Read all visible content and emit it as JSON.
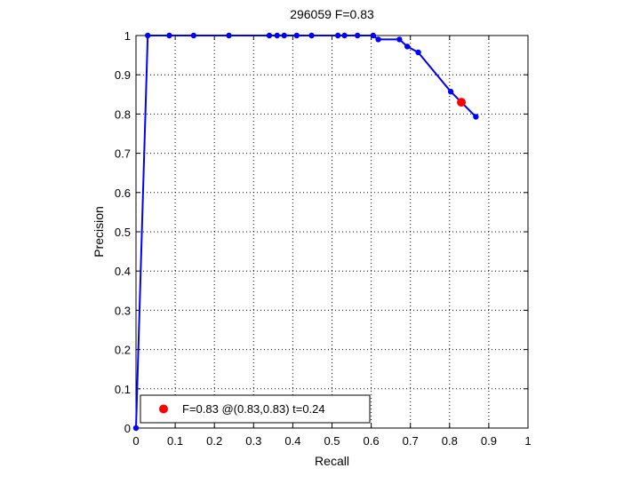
{
  "chart_data": {
    "type": "line",
    "title": "296059 F=0.83",
    "xlabel": "Recall",
    "ylabel": "Precision",
    "xlim": [
      0,
      1
    ],
    "ylim": [
      0,
      1
    ],
    "grid": true,
    "x_ticks": [
      "0",
      "0.1",
      "0.2",
      "0.3",
      "0.4",
      "0.5",
      "0.6",
      "0.7",
      "0.8",
      "0.9",
      "1"
    ],
    "y_ticks": [
      "0",
      "0.1",
      "0.2",
      "0.3",
      "0.4",
      "0.5",
      "0.6",
      "0.7",
      "0.8",
      "0.9",
      "1"
    ],
    "series": [
      {
        "color": "#0000ff",
        "x": [
          0,
          0.03,
          0.085,
          0.147,
          0.237,
          0.34,
          0.36,
          0.378,
          0.41,
          0.448,
          0.515,
          0.532,
          0.565,
          0.605,
          0.618,
          0.672,
          0.692,
          0.72,
          0.803,
          0.867
        ],
        "y": [
          0,
          1,
          1,
          1,
          1,
          1,
          1,
          1,
          1,
          1,
          1,
          1,
          1,
          1,
          0.99,
          0.99,
          0.972,
          0.957,
          0.857,
          0.793
        ]
      }
    ],
    "highlight": {
      "x": 0.83,
      "y": 0.83,
      "color": "#ff0000"
    },
    "legend": {
      "location": "bottom-left",
      "text": "F=0.83 @(0.83,0.83) t=0.24"
    }
  }
}
